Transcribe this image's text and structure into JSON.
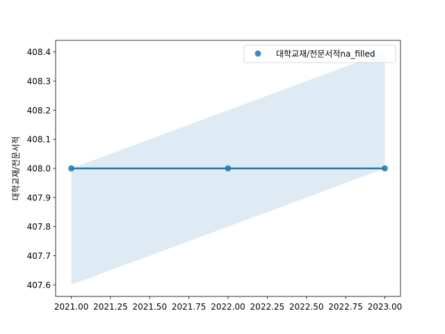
{
  "chart_data": {
    "type": "scatter",
    "title": "",
    "xlabel": "",
    "ylabel": "대학교재/전문서적",
    "xlim": [
      2020.9,
      2023.1
    ],
    "ylim": [
      407.56,
      408.44
    ],
    "xticks": [
      "2021.00",
      "2021.25",
      "2021.50",
      "2021.75",
      "2022.00",
      "2022.25",
      "2022.50",
      "2022.75",
      "2023.00"
    ],
    "xtick_values": [
      2021.0,
      2021.25,
      2021.5,
      2021.75,
      2022.0,
      2022.25,
      2022.5,
      2022.75,
      2023.0
    ],
    "yticks": [
      "407.6",
      "407.7",
      "407.8",
      "407.9",
      "408.0",
      "408.1",
      "408.2",
      "408.3",
      "408.4"
    ],
    "ytick_values": [
      407.6,
      407.7,
      407.8,
      407.9,
      408.0,
      408.1,
      408.2,
      408.3,
      408.4
    ],
    "grid": false,
    "legend_position": "top-right",
    "series": [
      {
        "name": "대학교재/전문서적na_filled",
        "x": [
          2021,
          2022,
          2023
        ],
        "y": [
          408.0,
          408.0,
          408.0
        ],
        "color": "#1f77b4"
      }
    ],
    "regression": {
      "x": [
        2021,
        2023
      ],
      "y": [
        408.0,
        408.0
      ],
      "ci_lower": [
        407.6,
        408.0
      ],
      "ci_upper": [
        408.0,
        408.4
      ],
      "line_color": "#1f77b4",
      "band_color": "#1f77b4"
    }
  }
}
